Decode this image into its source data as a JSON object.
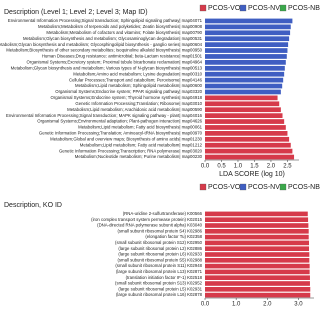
{
  "chart_data": [
    {
      "type": "bar",
      "orientation": "horizontal",
      "title": "Description (Level 1; Level 2; Level 3; Map ID)",
      "x_label": "LDA SCORE (log 10)",
      "categories": [
        "Environmental Information Processing;Signal transduction; Sphingolipid signaling pathway| map04071",
        "Metabolism;Metabolism of terpenoids and polyketides; Zeatin biosynthesis| map00908",
        "Metabolism;Metabolism of cofactors and vitamins; Folate biosynthesis| map00790",
        "Metabolism;Glycan biosynthesis and metabolism; Glycosaminoglycan degradation| map00531",
        "Metabolism;Glycan biosynthesis and metabolism; Glycosphingolipid biosynthesis - ganglio series| map00604",
        "Metabolism;Biosynthesis of other secondary metabolites; Isoquinoline alkaloid biosynthesis| map00950",
        "Human Diseases;Drug resistance: antimicrobial; beta-Lactam resistance| map01501",
        "Organismal Systems;Excretory system; Proximal tubule bicarbonate reclamation| map04964",
        "Metabolism;Glycan biosynthesis and metabolism; Various types of N-glycan biosynthesis| map00513",
        "Metabolism;Amino acid metabolism; Lysine degradation| map00310",
        "Cellular Processes;Transport and catabolism; Peroxisome| map04146",
        "Metabolism;Lipid metabolism; Sphingolipid metabolism| map00600",
        "Organismal Systems;Endocrine system; PPAR signaling pathway| map03320",
        "Organismal Systems;Endocrine system; Thyroid hormone synthesis| map04918",
        "Genetic Information Processing;Translation; Ribosome| map03010",
        "Metabolism;Lipid metabolism; Arachidonic acid metabolism| map00590",
        "Environmental Information Processing;Signal transduction; MAPK signaling pathway - plant| map04016",
        "Organismal Systems;Environmental adaptation; Plant-pathogen interaction| map04626",
        "Metabolism;Lipid metabolism; Fatty acid biosynthesis| map00061",
        "Genetic Information Processing;Translation; Aminoacyl-tRNA biosynthesis| map00970",
        "Metabolism;Global and overview maps; Biosynthesis of amino acids| map01230",
        "Metabolism;Lipid metabolism; Fatty acid metabolism| map01212",
        "Genetic Information Processing;Transcription; RNA polymerase| map03020",
        "Metabolism;Nucleotide metabolism; Purine metabolism| map00230"
      ],
      "series": [
        {
          "name": "PCOS-VO",
          "color": "#d63a4a",
          "values": [
            null,
            null,
            null,
            null,
            null,
            null,
            null,
            null,
            null,
            null,
            null,
            null,
            null,
            2.2,
            2.25,
            2.3,
            2.35,
            2.4,
            2.45,
            2.5,
            2.55,
            2.6,
            2.65,
            2.7
          ]
        },
        {
          "name": "PCOS-NVO",
          "color": "#3f5ec2",
          "values": [
            2.65,
            2.6,
            2.58,
            2.55,
            2.52,
            2.5,
            2.48,
            2.45,
            2.42,
            2.4,
            2.37,
            2.34,
            2.3,
            null,
            null,
            null,
            null,
            null,
            null,
            null,
            null,
            null,
            null,
            null
          ]
        },
        {
          "name": "PCOS-NB",
          "color": "#3aa84a",
          "values": [
            null,
            null,
            null,
            null,
            null,
            null,
            null,
            null,
            null,
            null,
            null,
            null,
            null,
            null,
            null,
            null,
            null,
            null,
            null,
            null,
            null,
            null,
            null,
            null
          ]
        }
      ],
      "xlim": [
        0,
        2.85
      ],
      "xticks": [
        {
          "value": 0,
          "label": "0.0"
        },
        {
          "value": 0.5,
          "label": "0.5"
        },
        {
          "value": 1,
          "label": "1.0"
        },
        {
          "value": 1.5,
          "label": "1.5"
        },
        {
          "value": 2,
          "label": "2.0"
        },
        {
          "value": 2.5,
          "label": "2.5"
        }
      ]
    },
    {
      "type": "bar",
      "orientation": "horizontal",
      "title": "Description, KO ID",
      "categories": [
        "(RNA-uridine 2-sulfurtransferase) K00566",
        "(iron complex transport system permease protein) K02015",
        "(DNA-directed RNA polymerase subunit alpha) K03040",
        "(small subunit ribosomal protein S4) K02986",
        "(elongation factor Tu) K02358",
        "(small subunit ribosomal protein S12) K02950",
        "(large subunit ribosomal protein L2) K02886",
        "(large subunit ribosomal protein L6) K02933",
        "(small subunit ribosomal protein S5) K02988",
        "(small subunit ribosomal protein S11) K02948",
        "(large subunit ribosomal protein L13) K02871",
        "(translation initiation factor IF-1) K02518",
        "(small subunit ribosomal protein S13) K02952",
        "(large subunit ribosomal protein L5) K02931",
        "(large subunit ribosomal protein L16) K02878"
      ],
      "series": [
        {
          "name": "PCOS-VO",
          "color": "#d63a4a",
          "values": [
            3.3,
            3.31,
            3.32,
            3.33,
            3.33,
            3.34,
            3.34,
            3.35,
            3.35,
            3.36,
            3.36,
            3.37,
            3.37,
            3.38,
            3.38
          ]
        },
        {
          "name": "PCOS-NVO",
          "color": "#3f5ec2",
          "values": [
            null,
            null,
            null,
            null,
            null,
            null,
            null,
            null,
            null,
            null,
            null,
            null,
            null,
            null,
            null
          ]
        },
        {
          "name": "PCOS-NB",
          "color": "#3aa84a",
          "values": [
            null,
            null,
            null,
            null,
            null,
            null,
            null,
            null,
            null,
            null,
            null,
            null,
            null,
            null,
            null
          ]
        }
      ],
      "xlim": [
        0,
        3.5
      ],
      "xticks": [
        {
          "value": 0,
          "label": "0.0"
        },
        {
          "value": 1,
          "label": "1.0"
        },
        {
          "value": 2,
          "label": "2.0"
        },
        {
          "value": 3,
          "label": "3.0"
        }
      ]
    }
  ]
}
